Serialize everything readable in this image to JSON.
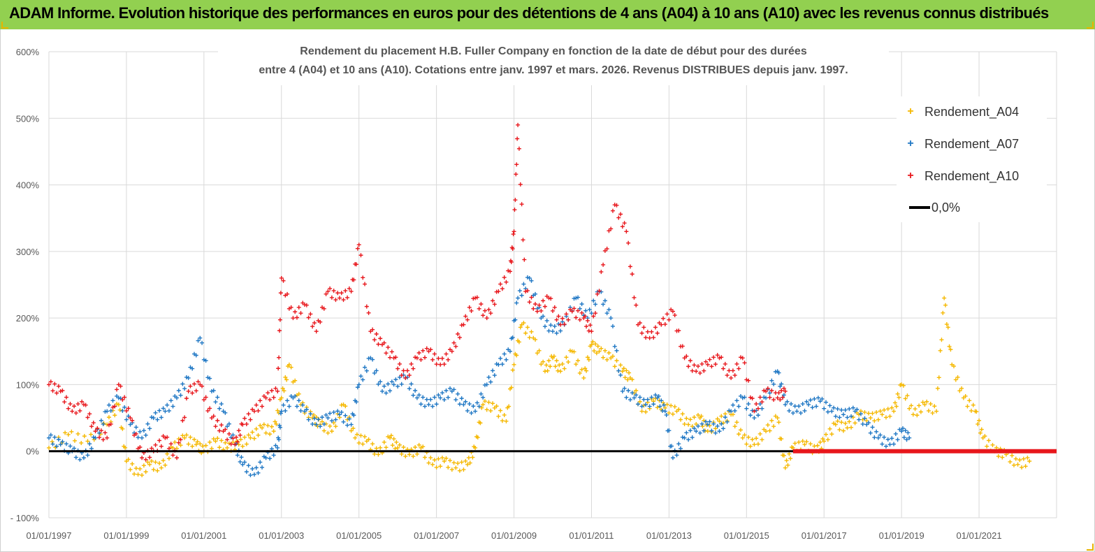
{
  "header": {
    "title": "ADAM Informe. Evolution historique des performances en euros pour des détentions de 4 ans (A04) à 10 ans (A10) avec les revenus connus distribués"
  },
  "chart_data": {
    "type": "scatter",
    "title_line1": "Rendement du placement H.B. Fuller Company en fonction de la date de début pour des durées",
    "title_line2": "entre 4 (A04) et 10 ans (A10).  Cotations entre janv. 1997 et mars. 2026. Revenus DISTRIBUES depuis janv. 1997.",
    "ylim": [
      -100,
      600
    ],
    "xlim": [
      1997.0,
      2023.0
    ],
    "yticks": [
      "600%",
      "500%",
      "400%",
      "300%",
      "200%",
      "100%",
      "0%",
      "- 100%"
    ],
    "ytick_values": [
      600,
      500,
      400,
      300,
      200,
      100,
      0,
      -100
    ],
    "xticks": [
      "01/01/1997",
      "01/01/1999",
      "01/01/2001",
      "01/01/2003",
      "01/01/2005",
      "01/01/2007",
      "01/01/2009",
      "01/01/2011",
      "01/01/2013",
      "01/01/2015",
      "01/01/2017",
      "01/01/2019",
      "01/01/2021"
    ],
    "xtick_values": [
      1997,
      1999,
      2001,
      2003,
      2005,
      2007,
      2009,
      2011,
      2013,
      2015,
      2017,
      2019,
      2021
    ],
    "series": [
      {
        "name": "Rendement_A04",
        "color": "#f5b800",
        "x": [
          1997.0,
          1997.5,
          1998.0,
          1998.5,
          1998.8,
          1999.0,
          1999.3,
          1999.6,
          1999.9,
          2000.2,
          2000.5,
          2000.8,
          2001.0,
          2001.3,
          2001.6,
          2001.9,
          2002.2,
          2002.5,
          2002.8,
          2003.0,
          2003.2,
          2003.5,
          2003.8,
          2004.0,
          2004.3,
          2004.6,
          2004.9,
          2005.2,
          2005.5,
          2005.8,
          2006.0,
          2006.3,
          2006.6,
          2006.9,
          2007.2,
          2007.5,
          2007.8,
          2008.0,
          2008.2,
          2008.5,
          2008.8,
          2009.0,
          2009.2,
          2009.5,
          2009.8,
          2010.0,
          2010.2,
          2010.5,
          2010.8,
          2011.0,
          2011.2,
          2011.5,
          2011.8,
          2012.0,
          2012.3,
          2012.6,
          2012.9,
          2013.2,
          2013.5,
          2013.8,
          2014.0,
          2014.3,
          2014.6,
          2014.9,
          2015.2,
          2015.5,
          2015.8,
          2016.0,
          2016.2,
          2016.5,
          2016.8,
          2017.0,
          2017.3,
          2017.6,
          2017.9,
          2018.2,
          2018.5,
          2018.8,
          2019.0,
          2019.3,
          2019.6,
          2019.9,
          2020.1,
          2020.3,
          2020.6,
          2020.9,
          2021.1,
          2021.4,
          2021.7,
          2022.0,
          2022.3
        ],
        "y": [
          5,
          25,
          15,
          40,
          70,
          -15,
          -35,
          -20,
          -25,
          5,
          20,
          10,
          0,
          15,
          5,
          10,
          20,
          35,
          30,
          80,
          130,
          70,
          50,
          40,
          30,
          70,
          20,
          15,
          -5,
          20,
          5,
          -5,
          5,
          -20,
          -15,
          -25,
          -20,
          5,
          70,
          65,
          45,
          130,
          190,
          170,
          120,
          140,
          120,
          150,
          110,
          160,
          150,
          140,
          120,
          110,
          60,
          75,
          65,
          60,
          40,
          50,
          30,
          45,
          55,
          20,
          10,
          30,
          50,
          -25,
          5,
          10,
          0,
          15,
          40,
          35,
          55,
          50,
          55,
          60,
          100,
          55,
          70,
          60,
          230,
          130,
          80,
          60,
          20,
          0,
          -5,
          -20,
          -15
        ]
      },
      {
        "name": "Rendement_A07",
        "color": "#1f77c4",
        "x": [
          1997.0,
          1997.3,
          1997.6,
          1997.9,
          1998.2,
          1998.5,
          1998.8,
          1999.1,
          1999.4,
          1999.7,
          2000.0,
          2000.3,
          2000.6,
          2000.9,
          2001.2,
          2001.5,
          2001.8,
          2002.0,
          2002.3,
          2002.6,
          2002.9,
          2003.0,
          2003.3,
          2003.6,
          2003.9,
          2004.2,
          2004.5,
          2004.8,
          2005.0,
          2005.3,
          2005.6,
          2005.9,
          2006.2,
          2006.5,
          2006.8,
          2007.1,
          2007.4,
          2007.7,
          2008.0,
          2008.3,
          2008.6,
          2008.9,
          2009.1,
          2009.4,
          2009.7,
          2010.0,
          2010.3,
          2010.6,
          2010.9,
          2011.2,
          2011.5,
          2011.8,
          2012.1,
          2012.4,
          2012.7,
          2012.9,
          2013.1,
          2013.4,
          2013.7,
          2014.0,
          2014.3,
          2014.6,
          2014.9,
          2015.2,
          2015.5,
          2015.8,
          2016.0,
          2016.3,
          2016.6,
          2016.9,
          2017.2,
          2017.5,
          2017.8,
          2018.1,
          2018.4,
          2018.7,
          2019.0,
          2019.2
        ],
        "y": [
          20,
          10,
          0,
          -10,
          20,
          60,
          80,
          40,
          20,
          50,
          60,
          80,
          110,
          170,
          90,
          60,
          10,
          -20,
          -35,
          -10,
          5,
          60,
          80,
          60,
          40,
          50,
          55,
          40,
          100,
          140,
          90,
          100,
          110,
          80,
          70,
          80,
          90,
          70,
          60,
          100,
          130,
          150,
          230,
          260,
          200,
          180,
          190,
          230,
          200,
          240,
          200,
          90,
          80,
          70,
          80,
          60,
          -10,
          20,
          30,
          40,
          30,
          60,
          80,
          50,
          80,
          120,
          70,
          60,
          70,
          75,
          60,
          55,
          60,
          40,
          20,
          10,
          30,
          20
        ]
      },
      {
        "name": "Rendement_A10",
        "color": "#e8171c",
        "x": [
          1997.0,
          1997.3,
          1997.6,
          1997.9,
          1998.2,
          1998.5,
          1998.8,
          1999.1,
          1999.4,
          1999.7,
          2000.0,
          2000.3,
          2000.6,
          2000.9,
          2001.2,
          2001.5,
          2001.8,
          2002.0,
          2002.3,
          2002.6,
          2002.9,
          2003.0,
          2003.3,
          2003.6,
          2003.9,
          2004.2,
          2004.5,
          2004.8,
          2005.0,
          2005.3,
          2005.6,
          2005.9,
          2006.2,
          2006.5,
          2006.8,
          2007.1,
          2007.4,
          2007.7,
          2008.0,
          2008.3,
          2008.6,
          2008.9,
          2009.0,
          2009.1,
          2009.3,
          2009.6,
          2009.9,
          2010.2,
          2010.5,
          2010.8,
          2011.0,
          2011.3,
          2011.6,
          2011.9,
          2012.2,
          2012.5,
          2012.8,
          2013.1,
          2013.4,
          2013.7,
          2014.0,
          2014.3,
          2014.6,
          2014.9,
          2015.2,
          2015.5,
          2015.8,
          2016.0
        ],
        "y": [
          100,
          90,
          60,
          70,
          30,
          20,
          100,
          50,
          -10,
          0,
          20,
          -10,
          90,
          100,
          50,
          30,
          10,
          40,
          60,
          80,
          90,
          260,
          200,
          220,
          180,
          240,
          230,
          240,
          310,
          180,
          160,
          140,
          110,
          140,
          150,
          130,
          150,
          190,
          230,
          200,
          240,
          270,
          330,
          490,
          240,
          210,
          230,
          190,
          210,
          200,
          180,
          280,
          370,
          330,
          190,
          170,
          190,
          210,
          140,
          120,
          130,
          140,
          110,
          140,
          60,
          90,
          80,
          90
        ]
      }
    ],
    "zero_line": {
      "name": "0,0%",
      "color": "#000000",
      "value": 0
    },
    "flat_series": {
      "name": "Rendement_A10",
      "color": "#e8171c",
      "x_start": 2016.2,
      "x_end": 2023.0,
      "value": 0
    }
  },
  "legend": {
    "items": [
      {
        "label": "Rendement_A04",
        "marker": "+",
        "color": "#f5b800"
      },
      {
        "label": "Rendement_A07",
        "marker": "+",
        "color": "#1f77c4"
      },
      {
        "label": "Rendement_A10",
        "marker": "+",
        "color": "#e8171c"
      },
      {
        "label": "0,0%"
      }
    ]
  }
}
